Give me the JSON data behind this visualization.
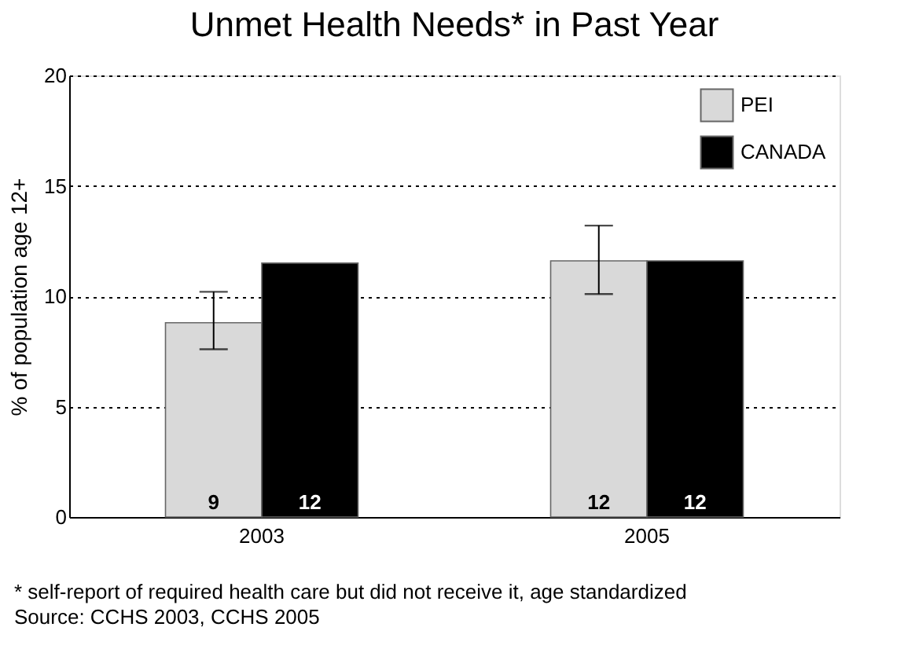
{
  "chart_data": {
    "type": "bar",
    "title": "Unmet Health Needs* in Past Year",
    "ylabel": "% of population age 12+",
    "categories": [
      "2003",
      "2005"
    ],
    "series": [
      {
        "name": "PEI",
        "color": "#d9d9d9",
        "values": [
          8.8,
          11.6
        ],
        "errors": [
          [
            7.6,
            10.2
          ],
          [
            10.1,
            13.2
          ]
        ],
        "value_labels": [
          "9",
          "12"
        ]
      },
      {
        "name": "CANADA",
        "color": "#000000",
        "values": [
          11.5,
          11.6
        ],
        "value_labels": [
          "12",
          "12"
        ]
      }
    ],
    "ylim": [
      0,
      20
    ],
    "yticks": [
      0,
      5,
      10,
      15,
      20
    ],
    "grid": "y",
    "legend": "top right",
    "annotations": [
      "* self-report of required health care but did not receive it, age standardized",
      "Source: CCHS 2003, CCHS 2005"
    ]
  }
}
